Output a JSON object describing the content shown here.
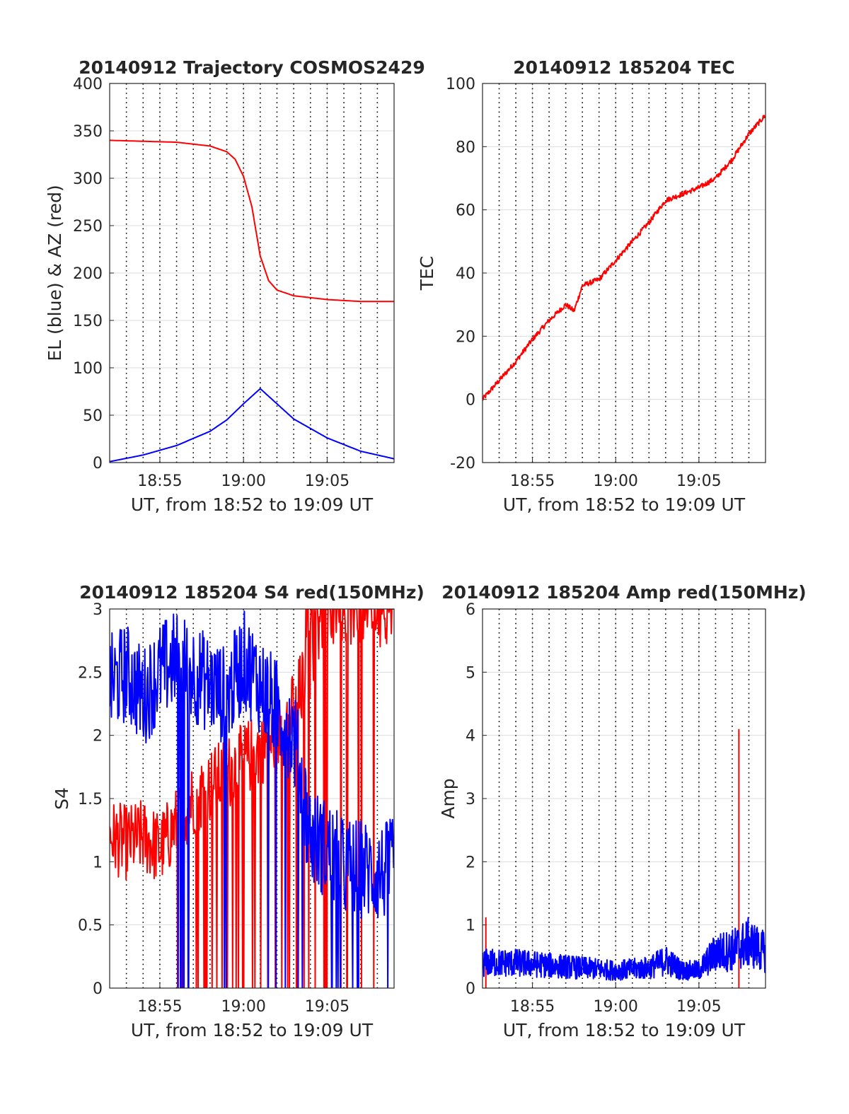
{
  "colors": {
    "el": "#0000ff",
    "az": "#ff0000",
    "tec": "#ff0000",
    "s4_red": "#ff0000",
    "s4_blue": "#0000ff",
    "amp_red": "#ff0000",
    "amp_blue": "#0000ff"
  },
  "chart_data": [
    {
      "type": "line",
      "title": "20140912 Trajectory COSMOS2429",
      "xlabel": "UT, from 18:52 to 19:09 UT",
      "ylabel": "EL (blue) & AZ (red)",
      "xlim": [
        "18:52",
        "19:09"
      ],
      "xticks": [
        "18:55",
        "19:00",
        "19:05"
      ],
      "ylim": [
        0,
        400
      ],
      "yticks": [
        "0",
        "50",
        "100",
        "150",
        "200",
        "250",
        "300",
        "350",
        "400"
      ],
      "grid": true,
      "minor_xgrid": "dotted",
      "series": [
        {
          "color": "blue",
          "x": [
            "18:52",
            "18:54",
            "18:56",
            "18:58",
            "18:59",
            "19:00",
            "19:01",
            "19:02",
            "19:03",
            "19:05",
            "19:07",
            "19:09"
          ],
          "values": [
            1,
            8,
            18,
            33,
            45,
            62,
            78,
            62,
            46,
            26,
            12,
            4
          ]
        },
        {
          "color": "red",
          "x": [
            "18:52",
            "18:54",
            "18:56",
            "18:58",
            "18:59",
            "18:59.5",
            "19:00",
            "19:00.5",
            "19:01",
            "19:01.5",
            "19:02",
            "19:03",
            "19:05",
            "19:07",
            "19:09"
          ],
          "values": [
            340,
            339,
            338,
            334,
            328,
            320,
            302,
            270,
            218,
            192,
            182,
            176,
            172,
            170,
            170
          ]
        }
      ]
    },
    {
      "type": "line",
      "title": "20140912 185204 TEC",
      "xlabel": "UT, from 18:52 to 19:09 UT",
      "ylabel": "TEC",
      "xlim": [
        "18:52",
        "19:09"
      ],
      "xticks": [
        "18:55",
        "19:00",
        "19:05"
      ],
      "ylim": [
        -20,
        100
      ],
      "yticks": [
        "-20",
        "0",
        "20",
        "40",
        "60",
        "80",
        "100"
      ],
      "grid": true,
      "minor_xgrid": "dotted",
      "series": [
        {
          "color": "red",
          "x": [
            "18:52",
            "18:53",
            "18:54",
            "18:55",
            "18:56",
            "18:57",
            "18:57.5",
            "18:58",
            "18:59",
            "19:00",
            "19:01",
            "19:02",
            "19:03",
            "19:04",
            "19:05",
            "19:06",
            "19:07",
            "19:08",
            "19:09"
          ],
          "values": [
            0,
            6,
            12,
            19,
            25,
            30,
            28,
            36,
            38,
            44,
            50,
            56,
            63,
            65,
            67,
            70,
            76,
            84,
            90
          ]
        }
      ]
    },
    {
      "type": "line",
      "title": "20140912 185204 S4 red(150MHz)",
      "xlabel": "UT, from 18:52 to 19:09 UT",
      "ylabel": "S4",
      "xlim": [
        "18:52",
        "19:09"
      ],
      "xticks": [
        "18:55",
        "19:00",
        "19:05"
      ],
      "ylim": [
        0,
        3
      ],
      "yticks": [
        "0",
        "0.5",
        "1",
        "1.5",
        "2",
        "2.5",
        "3"
      ],
      "grid": true,
      "minor_xgrid": "dotted",
      "series": [
        {
          "color": "red",
          "x": [
            "18:52",
            "18:53",
            "18:54",
            "18:55",
            "18:56",
            "18:57",
            "18:58",
            "18:59",
            "19:00",
            "19:01",
            "19:02",
            "19:03",
            "19:04",
            "19:05",
            "19:06",
            "19:07",
            "19:08",
            "19:09"
          ],
          "values": [
            1.2,
            1.15,
            1.2,
            1.1,
            1.3,
            1.5,
            1.6,
            1.7,
            1.8,
            1.9,
            2.0,
            2.2,
            2.6,
            3.0,
            3.0,
            3.0,
            3.0,
            3.0
          ]
        },
        {
          "color": "blue",
          "x": [
            "18:52",
            "18:53",
            "18:54",
            "18:55",
            "18:56",
            "18:57",
            "18:58",
            "18:59",
            "19:00",
            "19:01",
            "19:02",
            "19:03",
            "19:04",
            "19:05",
            "19:06",
            "19:07",
            "19:08",
            "19:09"
          ],
          "values": [
            2.4,
            2.5,
            2.3,
            2.5,
            2.6,
            2.5,
            2.4,
            2.3,
            2.6,
            2.4,
            2.2,
            2.0,
            1.2,
            1.1,
            0.95,
            0.95,
            0.9,
            0.95
          ]
        }
      ]
    },
    {
      "type": "line",
      "title": "20140912 185204 Amp red(150MHz)",
      "xlabel": "UT, from 18:52 to 19:09 UT",
      "ylabel": "Amp",
      "xlim": [
        "18:52",
        "19:09"
      ],
      "xticks": [
        "18:55",
        "19:00",
        "19:05"
      ],
      "ylim": [
        0,
        6
      ],
      "yticks": [
        "0",
        "1",
        "2",
        "3",
        "4",
        "5",
        "6"
      ],
      "grid": true,
      "minor_xgrid": "dotted",
      "series": [
        {
          "color": "red",
          "x": [
            "18:52.2",
            "19:07.4"
          ],
          "values": [
            1.12,
            4.1
          ]
        },
        {
          "color": "blue",
          "x": [
            "18:52",
            "18:54",
            "18:56",
            "18:58",
            "19:00",
            "19:02",
            "19:03",
            "19:04",
            "19:05",
            "19:06",
            "19:07",
            "19:08",
            "19:09"
          ],
          "values": [
            0.5,
            0.5,
            0.45,
            0.4,
            0.35,
            0.4,
            0.55,
            0.35,
            0.35,
            0.7,
            0.75,
            0.9,
            0.7
          ]
        }
      ]
    }
  ]
}
